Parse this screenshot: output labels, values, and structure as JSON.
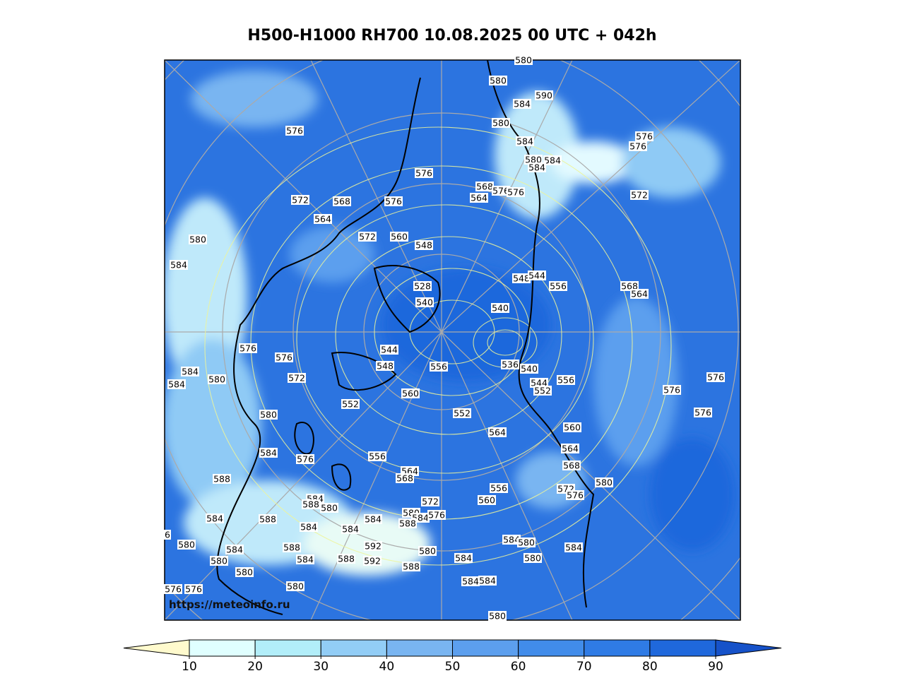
{
  "title": "H500-H1000 RH700 10.08.2025 00 UTC + 042h",
  "watermark": "https://meteoinfo.ru",
  "colorbar": {
    "ticks": [
      10,
      20,
      30,
      40,
      50,
      60,
      70,
      80,
      90
    ],
    "colors": [
      "#e0ffff",
      "#b2eef9",
      "#92cdf6",
      "#79b5f1",
      "#5c9fee",
      "#418cea",
      "#2f7be5",
      "#1f68dc"
    ],
    "under_color": "#fffacd",
    "over_color": "#1652c9"
  },
  "contour_labels": [
    580,
    590,
    584,
    580,
    576,
    576,
    576,
    584,
    580,
    584,
    584,
    576,
    572,
    568,
    576,
    568,
    564,
    576,
    576,
    572,
    564,
    580,
    572,
    560,
    548,
    584,
    548,
    544,
    556,
    568,
    564,
    528,
    540,
    540,
    544,
    548,
    556,
    536,
    540,
    576,
    576,
    584,
    584,
    580,
    572,
    556,
    544,
    552,
    576,
    576,
    576,
    552,
    560,
    552,
    580,
    564,
    560,
    564,
    584,
    576,
    556,
    564,
    568,
    568,
    588,
    556,
    572,
    580,
    576,
    584,
    588,
    580,
    572,
    560,
    580,
    584,
    576,
    588,
    584,
    588,
    584,
    584,
    584,
    584,
    580,
    6,
    580,
    584,
    588,
    592,
    580,
    584,
    580,
    584,
    588,
    592,
    584,
    580,
    588,
    580,
    580,
    584,
    584,
    576,
    576,
    580,
    580
  ]
}
